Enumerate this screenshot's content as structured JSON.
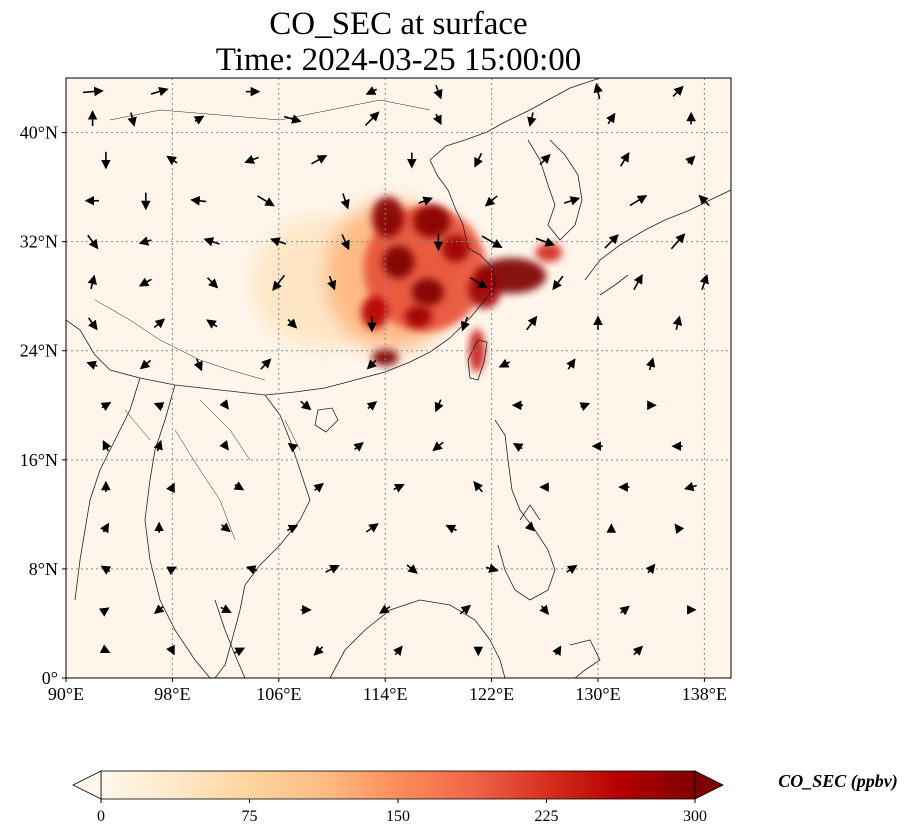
{
  "title": {
    "line1": "CO_SEC at surface",
    "line2": "Time: 2024-03-25 15:00:00"
  },
  "map": {
    "lon_range": [
      90,
      140
    ],
    "lat_range": [
      0,
      44
    ],
    "x_ticks": [
      {
        "value": 90,
        "label": "90°E"
      },
      {
        "value": 98,
        "label": "98°E"
      },
      {
        "value": 106,
        "label": "106°E"
      },
      {
        "value": 114,
        "label": "114°E"
      },
      {
        "value": 122,
        "label": "122°E"
      },
      {
        "value": 130,
        "label": "130°E"
      },
      {
        "value": 138,
        "label": "138°E"
      }
    ],
    "y_ticks": [
      {
        "value": 0,
        "label": "0°"
      },
      {
        "value": 8,
        "label": "8°N"
      },
      {
        "value": 16,
        "label": "16°N"
      },
      {
        "value": 24,
        "label": "24°N"
      },
      {
        "value": 32,
        "label": "32°N"
      },
      {
        "value": 40,
        "label": "40°N"
      }
    ],
    "gridlines": true,
    "background_color": "#fff5eb",
    "colormap": "OrRd",
    "plumes": [
      {
        "lon": 109.5,
        "lat": 29.0,
        "rx": 5.5,
        "ry": 4.8,
        "value": 45
      },
      {
        "lon": 114.5,
        "lat": 29.5,
        "rx": 5.0,
        "ry": 5.5,
        "value": 120
      },
      {
        "lon": 117.0,
        "lat": 30.0,
        "rx": 4.6,
        "ry": 4.6,
        "value": 200
      },
      {
        "lon": 114.2,
        "lat": 33.8,
        "rx": 1.2,
        "ry": 1.5,
        "value": 295
      },
      {
        "lon": 117.5,
        "lat": 33.5,
        "rx": 1.4,
        "ry": 1.2,
        "value": 295
      },
      {
        "lon": 119.3,
        "lat": 31.5,
        "rx": 1.0,
        "ry": 1.0,
        "value": 280
      },
      {
        "lon": 115.0,
        "lat": 30.5,
        "rx": 1.2,
        "ry": 1.2,
        "value": 300
      },
      {
        "lon": 117.2,
        "lat": 28.3,
        "rx": 1.2,
        "ry": 1.0,
        "value": 300
      },
      {
        "lon": 116.5,
        "lat": 26.5,
        "rx": 1.0,
        "ry": 0.8,
        "value": 280
      },
      {
        "lon": 113.2,
        "lat": 26.8,
        "rx": 1.0,
        "ry": 1.2,
        "value": 260
      },
      {
        "lon": 114.0,
        "lat": 23.5,
        "rx": 1.0,
        "ry": 0.6,
        "value": 300
      },
      {
        "lon": 123.5,
        "lat": 29.5,
        "rx": 2.6,
        "ry": 1.3,
        "value": 300
      },
      {
        "lon": 121.5,
        "lat": 28.5,
        "rx": 1.2,
        "ry": 1.4,
        "value": 280
      },
      {
        "lon": 126.3,
        "lat": 31.2,
        "rx": 1.0,
        "ry": 0.7,
        "value": 230
      },
      {
        "lon": 120.9,
        "lat": 24.0,
        "rx": 0.6,
        "ry": 1.6,
        "value": 240
      }
    ],
    "wind_vectors": [
      [
        92,
        43,
        1.2,
        0.1
      ],
      [
        97,
        43,
        1.0,
        0.3
      ],
      [
        104,
        43,
        0.8,
        0.0
      ],
      [
        113,
        43,
        -0.6,
        -0.3
      ],
      [
        118,
        43,
        0.3,
        -0.8
      ],
      [
        130,
        43,
        -0.2,
        0.9
      ],
      [
        136,
        43,
        0.6,
        0.6
      ],
      [
        92,
        41,
        0.0,
        0.9
      ],
      [
        95,
        41,
        0.2,
        -0.8
      ],
      [
        100,
        41,
        0.5,
        0.3
      ],
      [
        107,
        41,
        1.0,
        -0.3
      ],
      [
        113,
        41,
        0.8,
        0.8
      ],
      [
        118,
        41,
        0.3,
        -0.6
      ],
      [
        125,
        41,
        -0.2,
        -0.8
      ],
      [
        131,
        41,
        0.4,
        0.6
      ],
      [
        137,
        41,
        0.0,
        0.7
      ],
      [
        93,
        38,
        0.0,
        -1.0
      ],
      [
        98,
        38,
        -0.6,
        0.4
      ],
      [
        104,
        38,
        -0.8,
        -0.3
      ],
      [
        109,
        38,
        0.9,
        0.5
      ],
      [
        116,
        38,
        0.0,
        -0.9
      ],
      [
        121,
        38,
        -0.4,
        -0.8
      ],
      [
        126,
        38,
        0.6,
        0.6
      ],
      [
        132,
        38,
        0.5,
        0.8
      ],
      [
        137,
        38,
        0.4,
        0.4
      ],
      [
        92,
        35,
        -0.8,
        0.0
      ],
      [
        96,
        35,
        0.0,
        -1.0
      ],
      [
        100,
        35,
        -0.9,
        0.1
      ],
      [
        105,
        35,
        1.0,
        -0.6
      ],
      [
        111,
        35,
        0.3,
        -0.9
      ],
      [
        117,
        35,
        0.8,
        0.3
      ],
      [
        122,
        35,
        -0.7,
        -0.6
      ],
      [
        128,
        35,
        0.9,
        0.3
      ],
      [
        133,
        35,
        1.0,
        0.6
      ],
      [
        138,
        35,
        -0.6,
        0.6
      ],
      [
        92,
        32,
        0.6,
        -0.8
      ],
      [
        96,
        32,
        -0.7,
        -0.2
      ],
      [
        101,
        32,
        -0.9,
        0.3
      ],
      [
        106,
        32,
        -0.9,
        0.3
      ],
      [
        111,
        32,
        0.4,
        -0.9
      ],
      [
        118,
        32,
        0.0,
        -1.0
      ],
      [
        122,
        32,
        1.2,
        -0.7
      ],
      [
        126,
        32,
        1.1,
        -0.4
      ],
      [
        131,
        32,
        0.8,
        0.8
      ],
      [
        136,
        32,
        0.8,
        0.9
      ],
      [
        92,
        29,
        0.2,
        0.8
      ],
      [
        96,
        29,
        -0.7,
        -0.4
      ],
      [
        101,
        29,
        0.6,
        -0.6
      ],
      [
        106,
        29,
        -0.7,
        -0.9
      ],
      [
        110,
        29,
        0.3,
        -0.8
      ],
      [
        121,
        29,
        1.0,
        -0.6
      ],
      [
        127,
        29,
        -0.6,
        -0.8
      ],
      [
        133,
        29,
        0.5,
        0.9
      ],
      [
        138,
        29,
        0.3,
        0.9
      ],
      [
        92,
        26,
        0.5,
        -0.7
      ],
      [
        97,
        26,
        0.6,
        0.5
      ],
      [
        101,
        26,
        -0.6,
        0.4
      ],
      [
        107,
        26,
        0.5,
        -0.5
      ],
      [
        113,
        26,
        0.0,
        -0.9
      ],
      [
        120,
        26,
        -0.3,
        -0.8
      ],
      [
        125,
        26,
        0.6,
        0.8
      ],
      [
        130,
        26,
        0.0,
        0.8
      ],
      [
        136,
        26,
        0.2,
        0.8
      ],
      [
        92,
        23,
        -0.6,
        0.2
      ],
      [
        96,
        23,
        -0.6,
        -0.5
      ],
      [
        100,
        23,
        0.3,
        -0.7
      ],
      [
        105,
        23,
        0.6,
        0.6
      ],
      [
        113,
        23,
        -0.5,
        -0.5
      ],
      [
        123,
        23,
        -0.6,
        -0.3
      ],
      [
        128,
        23,
        0.4,
        0.6
      ],
      [
        134,
        23,
        0.2,
        0.7
      ],
      [
        93,
        20,
        0.5,
        0.3
      ],
      [
        97,
        20,
        -0.5,
        0.2
      ],
      [
        102,
        20,
        0.3,
        -0.4
      ],
      [
        108,
        20,
        0.6,
        -0.5
      ],
      [
        113,
        20,
        0.5,
        0.4
      ],
      [
        118,
        20,
        -0.3,
        -0.7
      ],
      [
        124,
        20,
        -0.6,
        0.0
      ],
      [
        129,
        20,
        0.5,
        0.2
      ],
      [
        134,
        20,
        0.5,
        0.0
      ],
      [
        93,
        17,
        -0.3,
        0.6
      ],
      [
        97,
        17,
        0.2,
        0.6
      ],
      [
        102,
        17,
        0.3,
        -0.4
      ],
      [
        107,
        17,
        -0.4,
        0.3
      ],
      [
        112,
        17,
        0.5,
        0.4
      ],
      [
        118,
        17,
        -0.6,
        -0.5
      ],
      [
        124,
        17,
        -0.5,
        0.3
      ],
      [
        130,
        17,
        -0.6,
        0.0
      ],
      [
        136,
        17,
        -0.6,
        0.0
      ],
      [
        93,
        14,
        0.0,
        0.6
      ],
      [
        98,
        14,
        0.2,
        0.4
      ],
      [
        103,
        14,
        0.5,
        -0.3
      ],
      [
        109,
        14,
        0.5,
        0.4
      ],
      [
        115,
        14,
        0.6,
        0.3
      ],
      [
        121,
        14,
        -0.5,
        0.6
      ],
      [
        126,
        14,
        -0.5,
        0.0
      ],
      [
        132,
        14,
        -0.6,
        0.0
      ],
      [
        137,
        14,
        -0.7,
        -0.2
      ],
      [
        93,
        11,
        0.3,
        0.5
      ],
      [
        97,
        11,
        0.0,
        0.6
      ],
      [
        102,
        11,
        0.5,
        -0.4
      ],
      [
        107,
        11,
        0.6,
        0.3
      ],
      [
        113,
        11,
        0.7,
        0.5
      ],
      [
        119,
        11,
        -0.6,
        0.3
      ],
      [
        125,
        11,
        0.3,
        -0.3
      ],
      [
        131,
        11,
        0.0,
        0.4
      ],
      [
        136,
        11,
        -0.3,
        0.4
      ],
      [
        93,
        8,
        -0.5,
        0.3
      ],
      [
        98,
        8,
        0.4,
        0.2
      ],
      [
        104,
        8,
        -0.6,
        0.2
      ],
      [
        110,
        8,
        0.8,
        0.4
      ],
      [
        116,
        8,
        0.6,
        -0.5
      ],
      [
        122,
        8,
        0.7,
        -0.2
      ],
      [
        128,
        8,
        0.6,
        0.4
      ],
      [
        134,
        8,
        0.4,
        0.5
      ],
      [
        93,
        5,
        0.3,
        0.2
      ],
      [
        97,
        5,
        -0.5,
        -0.4
      ],
      [
        102,
        5,
        0.6,
        -0.3
      ],
      [
        108,
        5,
        0.6,
        0.0
      ],
      [
        114,
        5,
        -0.6,
        -0.4
      ],
      [
        120,
        5,
        0.6,
        0.5
      ],
      [
        126,
        5,
        0.4,
        -0.5
      ],
      [
        132,
        5,
        0.5,
        0.4
      ],
      [
        137,
        5,
        0.5,
        0.0
      ],
      [
        93,
        2,
        0.4,
        -0.2
      ],
      [
        98,
        2,
        0.2,
        -0.4
      ],
      [
        103,
        2,
        0.6,
        0.3
      ],
      [
        109,
        2,
        -0.5,
        -0.5
      ],
      [
        115,
        2,
        0.4,
        0.5
      ],
      [
        121,
        2,
        0.0,
        -0.5
      ],
      [
        127,
        2,
        0.3,
        0.5
      ],
      [
        133,
        2,
        0.5,
        0.5
      ]
    ]
  },
  "colorbar": {
    "min": 0,
    "max": 300,
    "ticks": [
      {
        "value": 0,
        "label": "0"
      },
      {
        "value": 75,
        "label": "75"
      },
      {
        "value": 150,
        "label": "150"
      },
      {
        "value": 225,
        "label": "225"
      },
      {
        "value": 300,
        "label": "300"
      }
    ],
    "label": "CO_SEC (ppbv)",
    "extend": "both",
    "colors": [
      "#fff7ec",
      "#fee8c8",
      "#fdd49e",
      "#fdbb84",
      "#fc8d59",
      "#ef6548",
      "#d7301f",
      "#b30000",
      "#7f0000"
    ]
  }
}
